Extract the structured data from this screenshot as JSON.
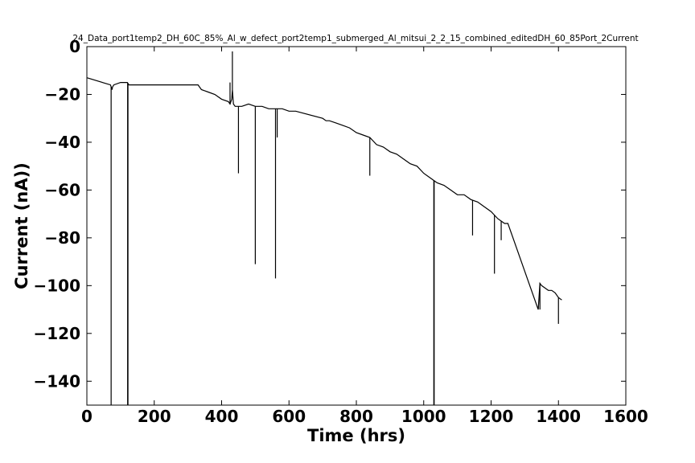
{
  "chart_data": {
    "type": "line",
    "title": "24_Data_port1temp2_DH_60C_85%_Al_w_defect_port2temp1_submerged_Al_mitsui_2_2_15_combined_editedDH_60_85Port_2Current",
    "xlabel": "Time (hrs)",
    "ylabel": "Current (nA))",
    "xlim": [
      0,
      1600
    ],
    "ylim": [
      -150,
      0
    ],
    "xticks": [
      0,
      200,
      400,
      600,
      800,
      1000,
      1200,
      1400,
      1600
    ],
    "yticks": [
      0,
      -20,
      -40,
      -60,
      -80,
      -100,
      -120,
      -140
    ],
    "grid": false,
    "line_color": "#000000",
    "series": [
      {
        "x": [
          0,
          70,
          75,
          76,
          80,
          100,
          120,
          125,
          130,
          150,
          200,
          250,
          275,
          280,
          300,
          330,
          340,
          360,
          380,
          400,
          420,
          425,
          430,
          432,
          435,
          440,
          460,
          480,
          500,
          520,
          540,
          560,
          580,
          600,
          610,
          620,
          700,
          710,
          720,
          740,
          760,
          780,
          800,
          820,
          840,
          860,
          880,
          900,
          920,
          940,
          960,
          980,
          1000,
          1020,
          1030,
          1040,
          1060,
          1080,
          1100,
          1120,
          1140,
          1160,
          1180,
          1200,
          1220,
          1240,
          1250,
          1340,
          1345,
          1350,
          1360,
          1370,
          1380,
          1390,
          1400,
          1410
        ],
        "y": [
          -13,
          -16,
          -18,
          -17,
          -16,
          -15,
          -15,
          -16,
          -16,
          -16,
          -16,
          -16,
          -16,
          -16,
          -16,
          -16,
          -18,
          -19,
          -20,
          -22,
          -23,
          -24,
          -22,
          -18,
          -24,
          -25,
          -25,
          -24,
          -25,
          -25,
          -26,
          -26,
          -26,
          -27,
          -27,
          -27,
          -30,
          -31,
          -31,
          -32,
          -33,
          -34,
          -36,
          -37,
          -38,
          -41,
          -42,
          -44,
          -45,
          -47,
          -49,
          -50,
          -53,
          -55,
          -56,
          -57,
          -58,
          -60,
          -62,
          -62,
          -64,
          -65,
          -67,
          -69,
          -72,
          -74,
          -74,
          -110,
          -99,
          -100,
          -101,
          -102,
          -102,
          -103,
          -105,
          -106
        ]
      }
    ],
    "spikes": {
      "x": [
        72,
        121,
        122,
        425,
        432,
        450,
        500,
        560,
        565,
        840,
        1030,
        1031,
        1145,
        1210,
        1230,
        1345,
        1400
      ],
      "y": [
        -150,
        -150,
        -150,
        -15,
        -2,
        -53,
        -91,
        -97,
        -38,
        -54,
        -150,
        -150,
        -79,
        -95,
        -81,
        -110,
        -116
      ]
    }
  }
}
